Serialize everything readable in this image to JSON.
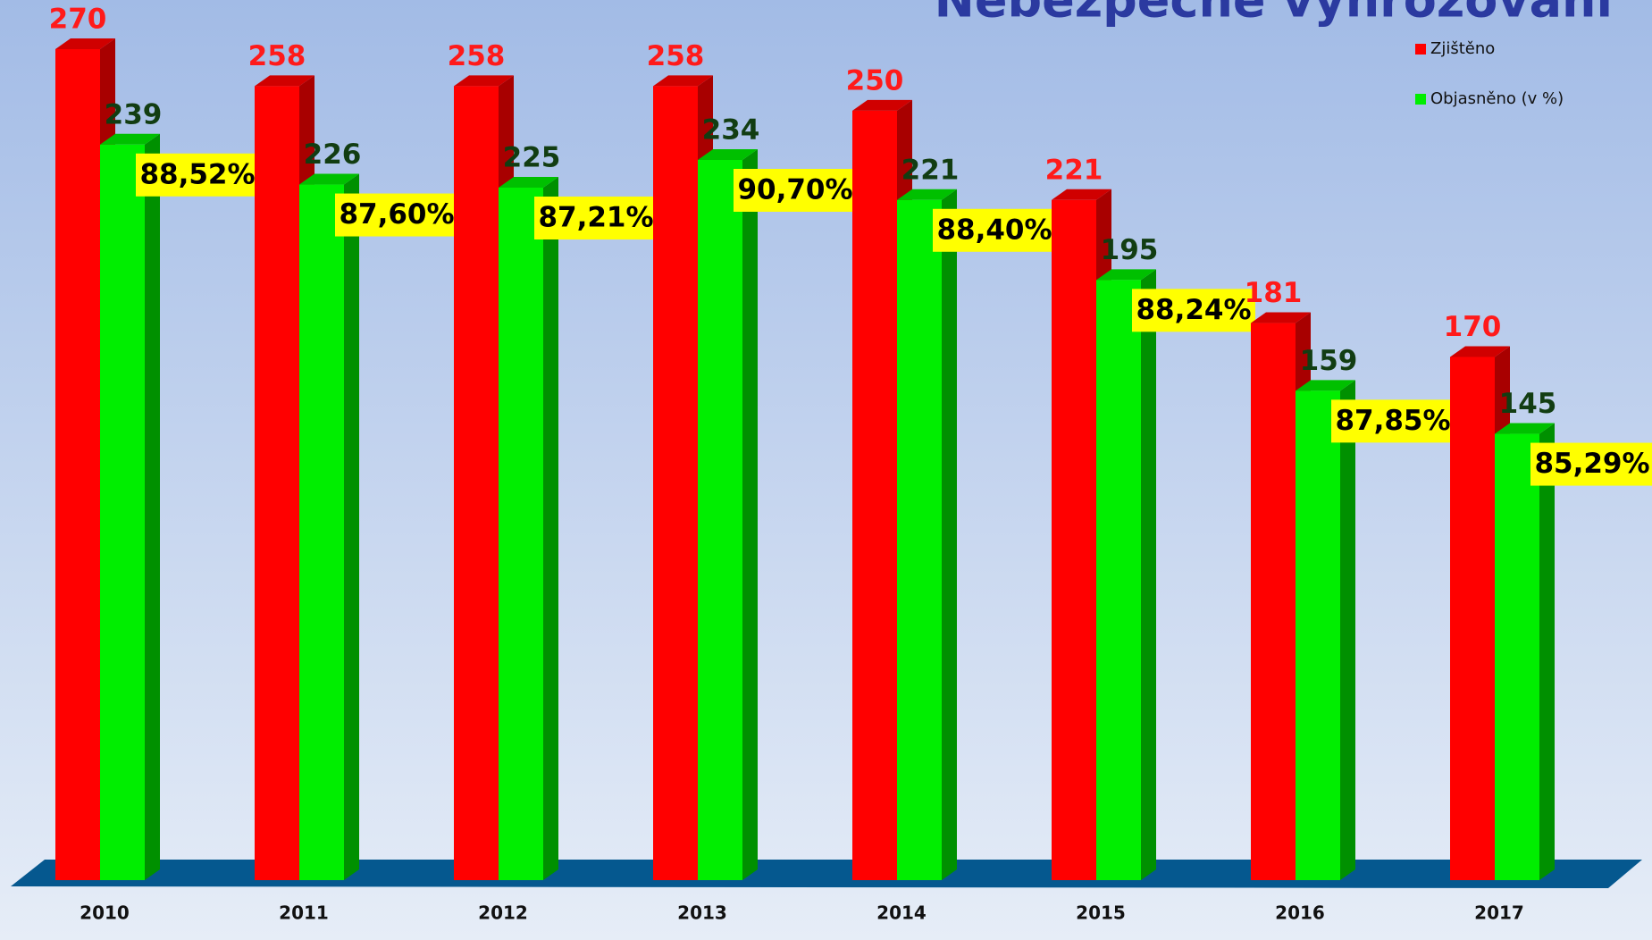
{
  "chart_data": {
    "type": "bar3d",
    "title": "Nebezpečné vyhrožování",
    "categories": [
      "2010",
      "2011",
      "2012",
      "2013",
      "2014",
      "2015",
      "2016",
      "2017"
    ],
    "series": [
      {
        "name": "Zjištěno",
        "color": "#ff0000",
        "values": [
          270,
          258,
          258,
          258,
          250,
          221,
          181,
          170
        ]
      },
      {
        "name": "Objasněno (v %)",
        "color": "#00ee00",
        "values": [
          239,
          226,
          225,
          234,
          221,
          195,
          159,
          145
        ]
      }
    ],
    "annotations": [
      "88,52%",
      "87,60%",
      "87,21%",
      "90,70%",
      "88,40%",
      "88,24%",
      "87,85%",
      "85,29%"
    ],
    "ylim": [
      0,
      270
    ],
    "legend": "top-right"
  }
}
